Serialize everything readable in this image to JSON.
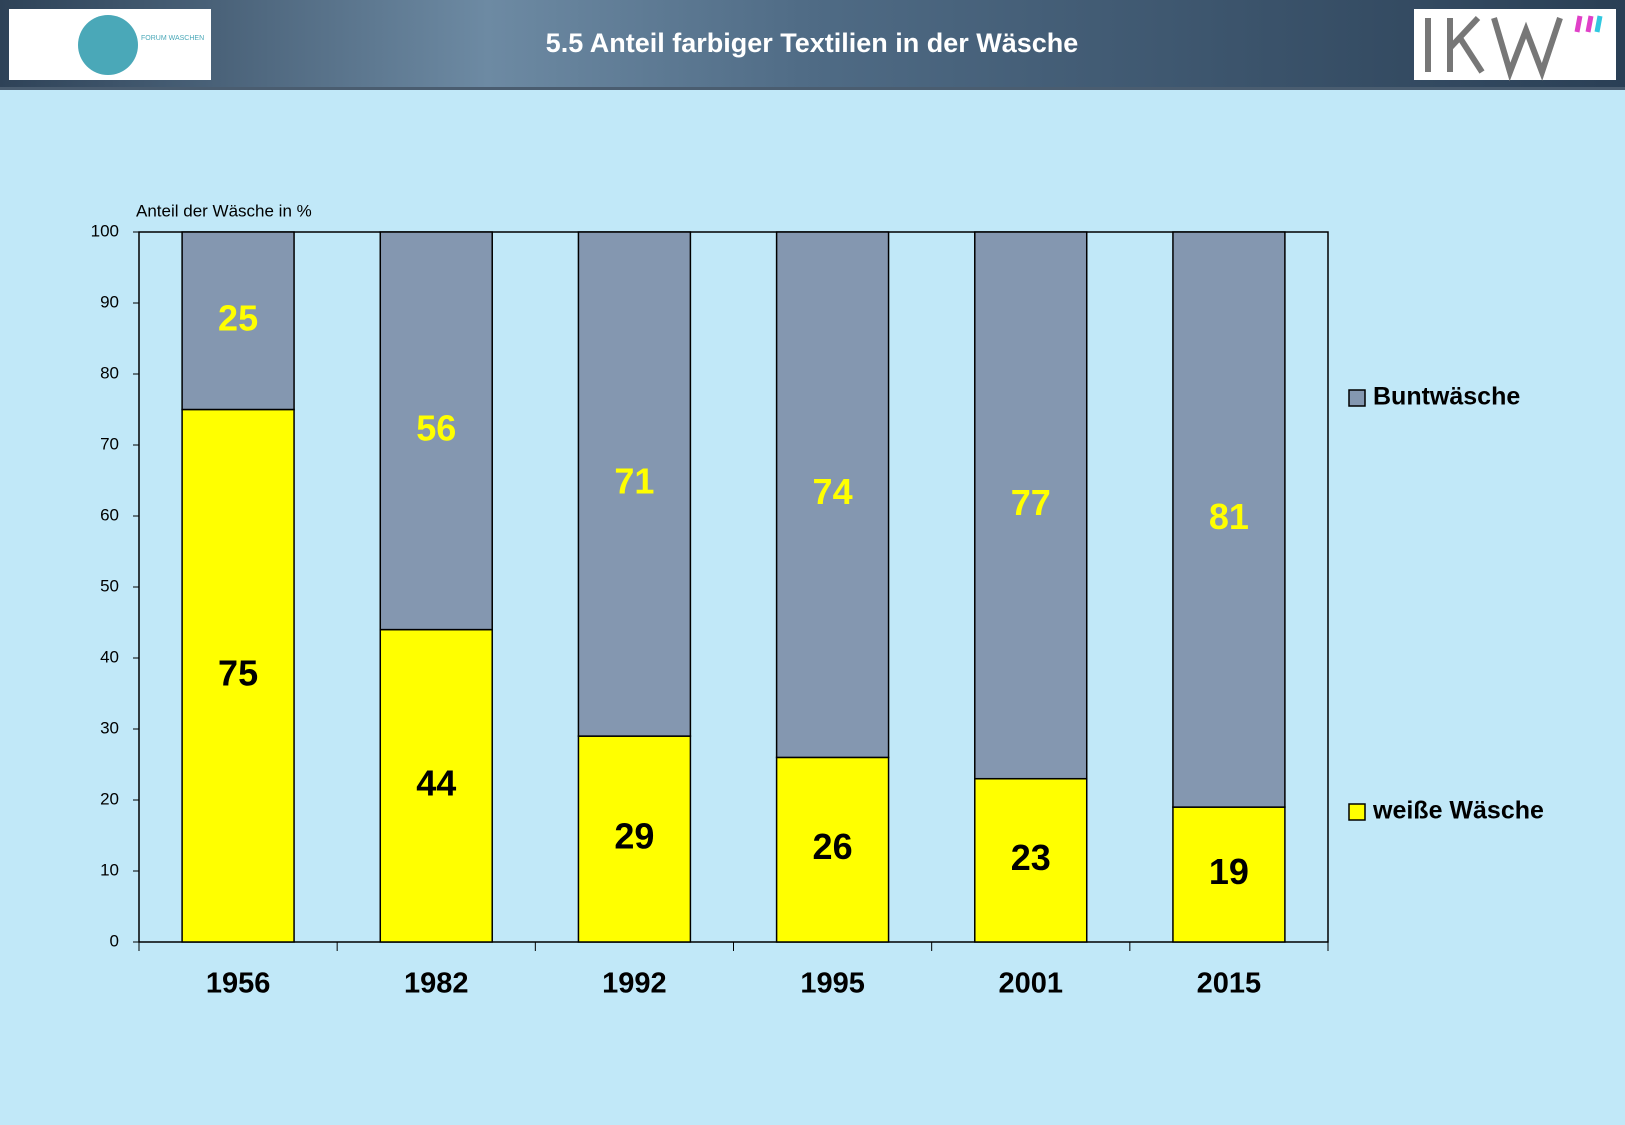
{
  "header": {
    "logo": "FORUM WASCHEN"
  },
  "chart_data": {
    "type": "stacked_bar",
    "title": "5.5 Anteil farbiger Textilien in der Wäsche",
    "y_label": "Anteil der Wäsche in %",
    "categories": [
      "1956",
      "1982",
      "1992",
      "1995",
      "2001",
      "2015"
    ],
    "series": [
      {
        "name": "weiße Wäsche",
        "color": "#ffff00",
        "label_color": "#000000",
        "values": [
          75,
          44,
          29,
          26,
          23,
          19
        ]
      },
      {
        "name": "Buntwäsche",
        "color": "#8497b0",
        "label_color": "#ffff00",
        "values": [
          25,
          56,
          71,
          74,
          77,
          81
        ]
      }
    ],
    "ylim": [
      0,
      100
    ],
    "yticks": [
      0,
      10,
      20,
      30,
      40,
      50,
      60,
      70,
      80,
      90,
      100
    ],
    "grid": false,
    "legend": "right"
  }
}
